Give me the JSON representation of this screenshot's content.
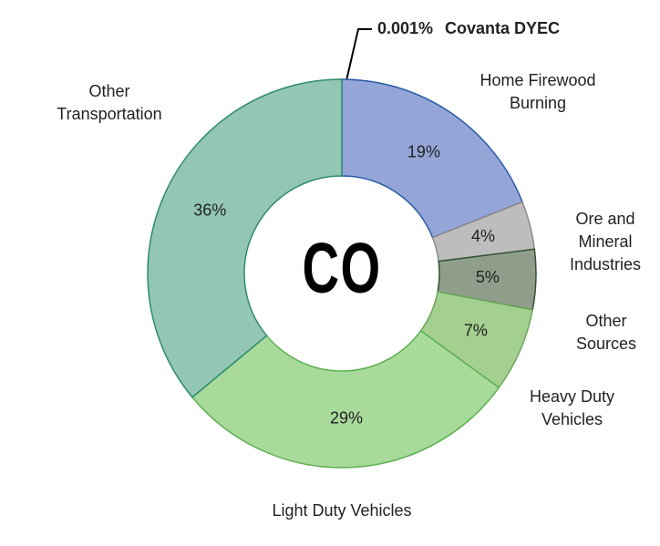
{
  "chart_data": {
    "type": "donut",
    "center_label": "CO",
    "categories": [
      "Covanta DYEC",
      "Home Firewood Burning",
      "Ore and Mineral Industries",
      "Other Sources",
      "Heavy Duty Vehicles",
      "Light Duty Vehicles",
      "Other Transportation"
    ],
    "values": [
      0.001,
      19,
      4,
      5,
      7,
      29,
      36
    ],
    "value_labels": [
      "0.001%",
      "19%",
      "4%",
      "5%",
      "7%",
      "29%",
      "36%"
    ],
    "colors": [
      "#2e5fa6",
      "#94a6d8",
      "#bdbdbd",
      "#8f9e8a",
      "#a3cf90",
      "#a8da9c",
      "#93c6b3"
    ],
    "edge_colors": [
      "#1f4e99",
      "#2a5ba5",
      "#8a8a8a",
      "#2f5230",
      "#6aa85a",
      "#5cb050",
      "#2e8b6e"
    ]
  }
}
